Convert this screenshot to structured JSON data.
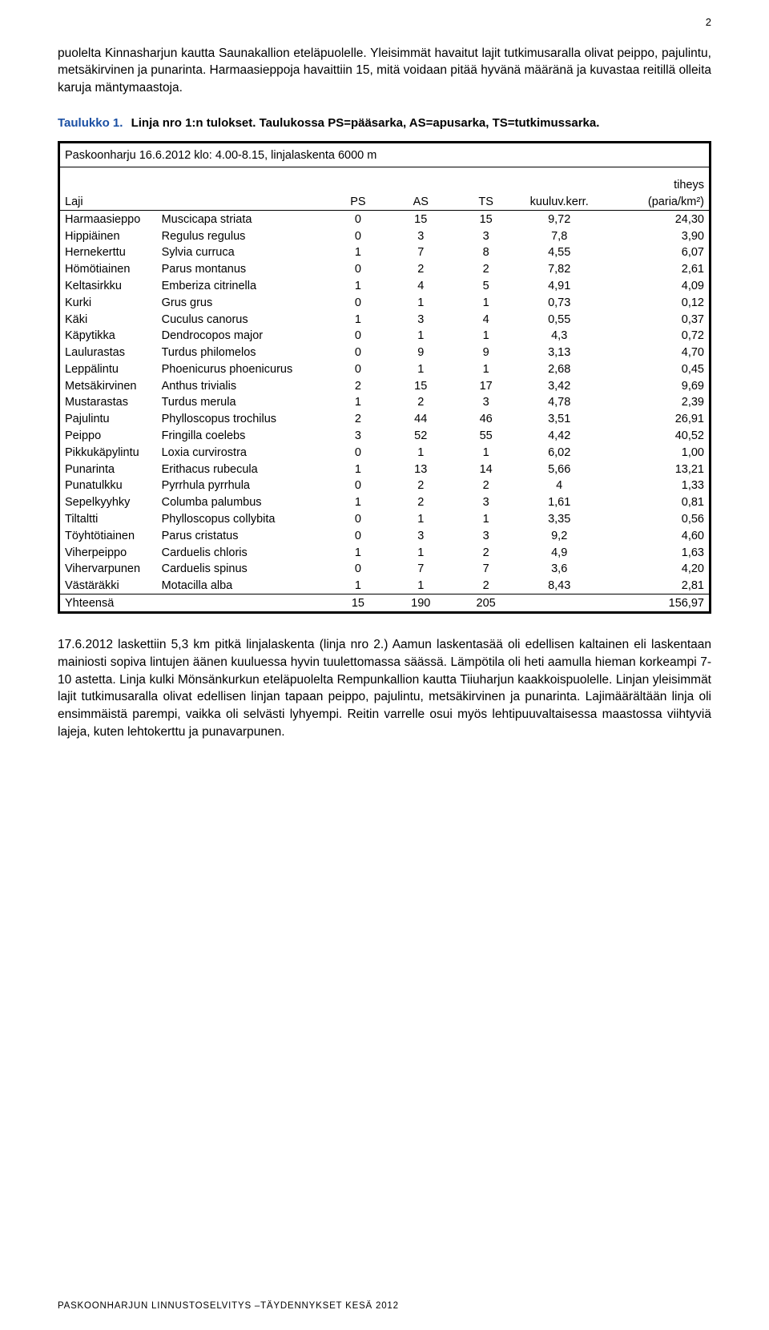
{
  "page_number": "2",
  "paragraph_top": "puolelta Kinnasharjun kautta Saunakallion eteläpuolelle. Yleisimmät havaitut lajit tutkimusaralla olivat peippo, pajulintu, metsäkirvinen ja punarinta. Harmaasieppoja havaittiin 15, mitä voidaan pitää hyvänä määränä ja kuvastaa reitillä olleita karuja mäntymaastoja.",
  "caption": {
    "link": "Taulukko 1.",
    "rest": "Linja nro 1:n tulokset. Taulukossa PS=pääsarka, AS=apusarka, TS=tutkimussarka."
  },
  "table": {
    "title": "Paskoonharju 16.6.2012 klo: 4.00-8.15, linjalaskenta 6000 m",
    "tiheys_label": "tiheys",
    "laji_label": "Laji",
    "col_ps": "PS",
    "col_as": "AS",
    "col_ts": "TS",
    "col_kuul": "kuuluv.kerr.",
    "col_paria": "(paria/km²)",
    "rows": [
      {
        "fin": "Harmaasieppo",
        "lat": "Muscicapa striata",
        "ps": "0",
        "as": "15",
        "ts": "15",
        "kuul": "9,72",
        "paria": "24,30"
      },
      {
        "fin": "Hippiäinen",
        "lat": "Regulus regulus",
        "ps": "0",
        "as": "3",
        "ts": "3",
        "kuul": "7,8",
        "paria": "3,90"
      },
      {
        "fin": "Hernekerttu",
        "lat": "Sylvia curruca",
        "ps": "1",
        "as": "7",
        "ts": "8",
        "kuul": "4,55",
        "paria": "6,07"
      },
      {
        "fin": "Hömötiainen",
        "lat": "Parus montanus",
        "ps": "0",
        "as": "2",
        "ts": "2",
        "kuul": "7,82",
        "paria": "2,61"
      },
      {
        "fin": "Keltasirkku",
        "lat": "Emberiza citrinella",
        "ps": "1",
        "as": "4",
        "ts": "5",
        "kuul": "4,91",
        "paria": "4,09"
      },
      {
        "fin": "Kurki",
        "lat": "Grus grus",
        "ps": "0",
        "as": "1",
        "ts": "1",
        "kuul": "0,73",
        "paria": "0,12"
      },
      {
        "fin": "Käki",
        "lat": "Cuculus canorus",
        "ps": "1",
        "as": "3",
        "ts": "4",
        "kuul": "0,55",
        "paria": "0,37"
      },
      {
        "fin": "Käpytikka",
        "lat": "Dendrocopos major",
        "ps": "0",
        "as": "1",
        "ts": "1",
        "kuul": "4,3",
        "paria": "0,72"
      },
      {
        "fin": "Laulurastas",
        "lat": "Turdus philomelos",
        "ps": "0",
        "as": "9",
        "ts": "9",
        "kuul": "3,13",
        "paria": "4,70"
      },
      {
        "fin": "Leppälintu",
        "lat": "Phoenicurus phoenicurus",
        "ps": "0",
        "as": "1",
        "ts": "1",
        "kuul": "2,68",
        "paria": "0,45"
      },
      {
        "fin": "Metsäkirvinen",
        "lat": "Anthus trivialis",
        "ps": "2",
        "as": "15",
        "ts": "17",
        "kuul": "3,42",
        "paria": "9,69"
      },
      {
        "fin": "Mustarastas",
        "lat": "Turdus merula",
        "ps": "1",
        "as": "2",
        "ts": "3",
        "kuul": "4,78",
        "paria": "2,39"
      },
      {
        "fin": "Pajulintu",
        "lat": "Phylloscopus trochilus",
        "ps": "2",
        "as": "44",
        "ts": "46",
        "kuul": "3,51",
        "paria": "26,91"
      },
      {
        "fin": "Peippo",
        "lat": "Fringilla coelebs",
        "ps": "3",
        "as": "52",
        "ts": "55",
        "kuul": "4,42",
        "paria": "40,52"
      },
      {
        "fin": "Pikkukäpylintu",
        "lat": "Loxia curvirostra",
        "ps": "0",
        "as": "1",
        "ts": "1",
        "kuul": "6,02",
        "paria": "1,00"
      },
      {
        "fin": "Punarinta",
        "lat": "Erithacus rubecula",
        "ps": "1",
        "as": "13",
        "ts": "14",
        "kuul": "5,66",
        "paria": "13,21"
      },
      {
        "fin": "Punatulkku",
        "lat": "Pyrrhula pyrrhula",
        "ps": "0",
        "as": "2",
        "ts": "2",
        "kuul": "4",
        "paria": "1,33"
      },
      {
        "fin": "Sepelkyyhky",
        "lat": "Columba palumbus",
        "ps": "1",
        "as": "2",
        "ts": "3",
        "kuul": "1,61",
        "paria": "0,81"
      },
      {
        "fin": "Tiltaltti",
        "lat": "Phylloscopus collybita",
        "ps": "0",
        "as": "1",
        "ts": "1",
        "kuul": "3,35",
        "paria": "0,56"
      },
      {
        "fin": "Töyhtötiainen",
        "lat": "Parus cristatus",
        "ps": "0",
        "as": "3",
        "ts": "3",
        "kuul": "9,2",
        "paria": "4,60"
      },
      {
        "fin": "Viherpeippo",
        "lat": "Carduelis chloris",
        "ps": "1",
        "as": "1",
        "ts": "2",
        "kuul": "4,9",
        "paria": "1,63"
      },
      {
        "fin": "Vihervarpunen",
        "lat": "Carduelis spinus",
        "ps": "0",
        "as": "7",
        "ts": "7",
        "kuul": "3,6",
        "paria": "4,20"
      },
      {
        "fin": "Västäräkki",
        "lat": "Motacilla alba",
        "ps": "1",
        "as": "1",
        "ts": "2",
        "kuul": "8,43",
        "paria": "2,81"
      }
    ],
    "total": {
      "label": "Yhteensä",
      "ps": "15",
      "as": "190",
      "ts": "205",
      "kuul": "",
      "paria": "156,97"
    }
  },
  "paragraph_bottom": "17.6.2012 laskettiin 5,3 km pitkä linjalaskenta (linja nro 2.) Aamun laskentasää oli edellisen kaltainen eli laskentaan mainiosti sopiva lintujen äänen kuuluessa hyvin tuulettomassa säässä. Lämpötila oli heti aamulla hieman korkeampi 7-10 astetta. Linja kulki Mönsänkurkun eteläpuolelta Rempunkallion kautta Tiiuharjun kaakkoispuolelle. Linjan yleisimmät lajit tutkimusaralla olivat edellisen linjan tapaan peippo, pajulintu, metsäkirvinen ja punarinta. Lajimäärältään linja oli ensimmäistä parempi, vaikka oli selvästi lyhyempi. Reitin varrelle osui myös lehtipuuvaltaisessa maastossa viihtyviä lajeja, kuten lehtokerttu ja punavarpunen.",
  "footer": "PASKOONHARJUN LINNUSTOSELVITYS –TÄYDENNYKSET KESÄ 2012"
}
